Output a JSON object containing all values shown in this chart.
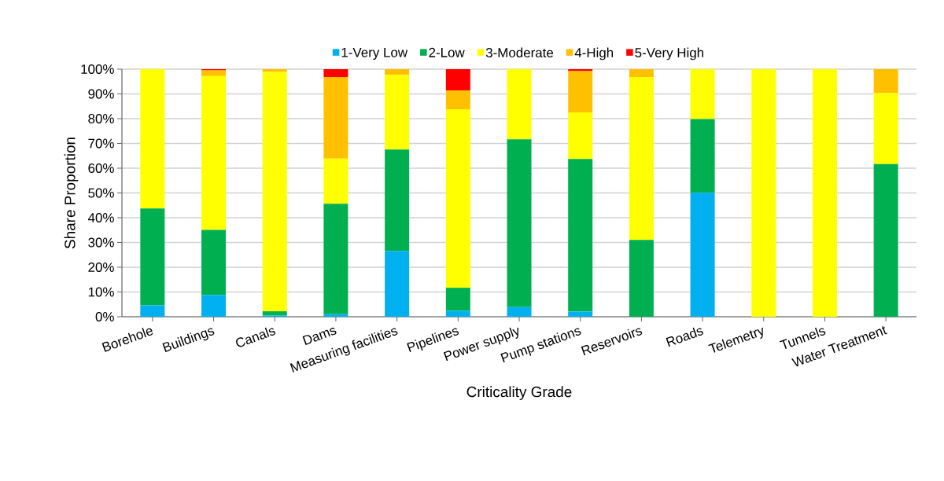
{
  "chart_data": {
    "type": "bar",
    "stacked": true,
    "xlabel": "Criticality Grade",
    "ylabel": "Share Proportion",
    "categories": [
      "Borehole",
      "Buildings",
      "Canals",
      "Dams",
      "Measuring facilities",
      "Pipelines",
      "Power supply",
      "Pump stations",
      "Reservoirs",
      "Roads",
      "Telemetry",
      "Tunnels",
      "Water Treatment"
    ],
    "series": [
      {
        "name": "1-Very Low",
        "color": "#00b0f0",
        "values": [
          4.6,
          8.8,
          0.5,
          1.0,
          26.6,
          2.4,
          3.9,
          2.1,
          0,
          50.1,
          0,
          0,
          0
        ]
      },
      {
        "name": "2-Low",
        "color": "#00b050",
        "values": [
          39.1,
          26.3,
          1.7,
          44.6,
          40.9,
          9.3,
          67.8,
          61.6,
          31.0,
          29.7,
          0,
          0,
          61.7
        ]
      },
      {
        "name": "3-Moderate",
        "color": "#ffff00",
        "values": [
          56.3,
          62.1,
          96.7,
          18.3,
          30.2,
          72.1,
          28.3,
          18.8,
          65.8,
          20.2,
          100,
          100,
          28.6
        ]
      },
      {
        "name": "4-High",
        "color": "#ffc000",
        "values": [
          0,
          2.3,
          1.1,
          32.9,
          2.3,
          7.6,
          0,
          16.7,
          3.2,
          0,
          0,
          0,
          9.7
        ]
      },
      {
        "name": "5-Very High",
        "color": "#ff0000",
        "values": [
          0,
          0.5,
          0,
          3.2,
          0,
          8.6,
          0,
          0.8,
          0,
          0,
          0,
          0,
          0
        ]
      }
    ],
    "ylim": [
      0,
      100
    ],
    "yticks": [
      {
        "value": 0,
        "label": "0%"
      },
      {
        "value": 10,
        "label": "10%"
      },
      {
        "value": 20,
        "label": "20%"
      },
      {
        "value": 30,
        "label": "30%"
      },
      {
        "value": 40,
        "label": "40%"
      },
      {
        "value": 50,
        "label": "50%"
      },
      {
        "value": 60,
        "label": "60%"
      },
      {
        "value": 70,
        "label": "70%"
      },
      {
        "value": 80,
        "label": "80%"
      },
      {
        "value": 90,
        "label": "90%"
      },
      {
        "value": 100,
        "label": "100%"
      }
    ],
    "grid": "y",
    "legend": "top"
  }
}
